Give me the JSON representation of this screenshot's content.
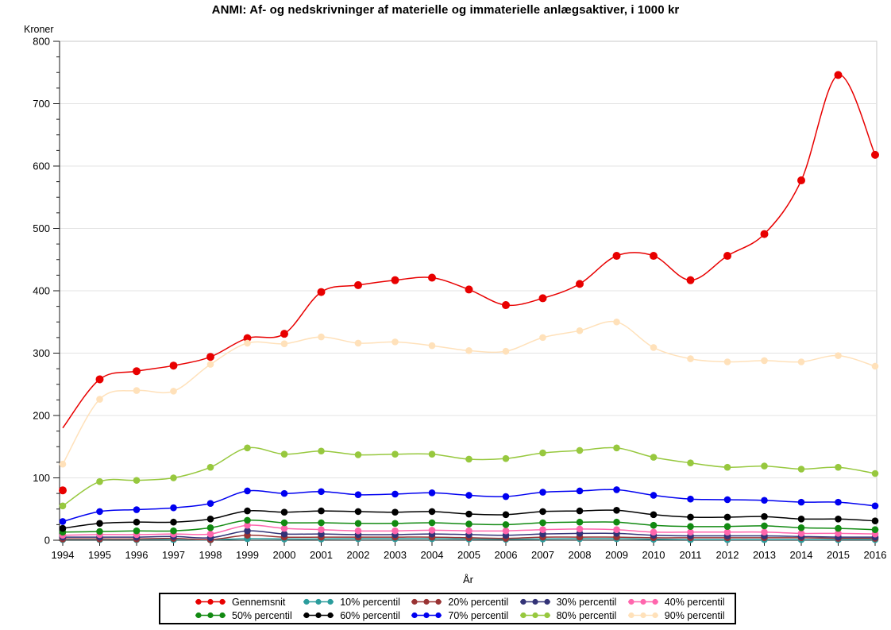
{
  "chart_data": {
    "type": "line",
    "title": "ANMI: Af- og nedskrivninger af materielle og immaterielle anlægsaktiver, i 1000 kr",
    "ylabel": "Kroner",
    "xlabel": "År",
    "ylim": [
      0,
      800
    ],
    "y_major_ticks": [
      0,
      100,
      200,
      300,
      400,
      500,
      600,
      700,
      800
    ],
    "y_minor_step": 25,
    "grid": "horizontal",
    "grid_color": "#e3e3e3",
    "frame_color": "#c8c8c8",
    "axis_color": "#1a1a1a",
    "legend_position": "bottom-center",
    "x": [
      1994,
      1995,
      1996,
      1997,
      1998,
      1999,
      2000,
      2001,
      2002,
      2003,
      2004,
      2005,
      2006,
      2007,
      2008,
      2009,
      2010,
      2011,
      2012,
      2013,
      2014,
      2015,
      2016
    ],
    "series": [
      {
        "name": "Gennemsnit",
        "color": "#e80000",
        "marker_radius": 5,
        "line_start_value": 180,
        "values": [
          80,
          258,
          271,
          280,
          294,
          324,
          331,
          398,
          409,
          417,
          421,
          402,
          377,
          388,
          411,
          456,
          456,
          417,
          456,
          491,
          577,
          746,
          618
        ]
      },
      {
        "name": "10% percentil",
        "color": "#2a9c9c",
        "marker_radius": 4.3,
        "values": [
          1,
          1,
          1,
          1,
          0.5,
          2.5,
          2,
          2,
          2.5,
          2.5,
          2.5,
          2,
          1.5,
          2,
          2.5,
          2.5,
          1.5,
          1,
          1,
          1,
          1,
          1,
          1
        ]
      },
      {
        "name": "20% percentil",
        "color": "#993333",
        "marker_radius": 4.3,
        "values": [
          2,
          2,
          2,
          3,
          1,
          8,
          5,
          5,
          5,
          5,
          5,
          4,
          3,
          5,
          5,
          5,
          4,
          4,
          4,
          4,
          4,
          3,
          3
        ]
      },
      {
        "name": "30% percentil",
        "color": "#333377",
        "marker_radius": 4.3,
        "values": [
          5,
          5,
          5,
          6,
          4,
          15,
          10,
          10,
          9,
          9,
          10,
          9,
          8,
          10,
          11,
          11,
          8,
          7,
          7,
          7,
          6,
          5,
          5
        ]
      },
      {
        "name": "40% percentil",
        "color": "#ff66ad",
        "marker_radius": 4.3,
        "values": [
          8,
          9,
          9,
          10,
          10,
          24,
          19,
          17,
          15,
          15,
          16,
          15,
          15,
          17,
          18,
          17,
          13,
          13,
          13,
          13,
          11,
          11,
          10
        ]
      },
      {
        "name": "50% percentil",
        "color": "#128a12",
        "marker_radius": 4.3,
        "values": [
          13,
          14,
          15,
          15,
          20,
          32,
          28,
          28,
          27,
          27,
          28,
          26,
          25,
          28,
          29,
          29,
          24,
          22,
          22,
          23,
          20,
          19,
          17
        ]
      },
      {
        "name": "60% percentil",
        "color": "#000000",
        "marker_radius": 4.3,
        "values": [
          19,
          27,
          29,
          29,
          34,
          47,
          45,
          47,
          46,
          45,
          46,
          42,
          41,
          46,
          47,
          48,
          41,
          37,
          37,
          38,
          34,
          34,
          31
        ]
      },
      {
        "name": "70% percentil",
        "color": "#0000f0",
        "marker_radius": 4.3,
        "values": [
          30,
          46,
          49,
          52,
          59,
          79,
          75,
          78,
          73,
          74,
          76,
          72,
          70,
          77,
          79,
          81,
          72,
          66,
          65,
          64,
          61,
          61,
          55
        ]
      },
      {
        "name": "80% percentil",
        "color": "#97c83e",
        "marker_radius": 4.3,
        "values": [
          55,
          94,
          96,
          100,
          117,
          148,
          138,
          143,
          137,
          138,
          138,
          130,
          131,
          140,
          144,
          148,
          133,
          124,
          117,
          119,
          114,
          117,
          107
        ]
      },
      {
        "name": "90% percentil",
        "color": "#ffe1ba",
        "marker_radius": 4.3,
        "values": [
          122,
          226,
          240,
          239,
          282,
          316,
          315,
          326,
          316,
          318,
          312,
          304,
          303,
          325,
          336,
          350,
          309,
          291,
          286,
          288,
          286,
          296,
          279
        ]
      }
    ]
  }
}
